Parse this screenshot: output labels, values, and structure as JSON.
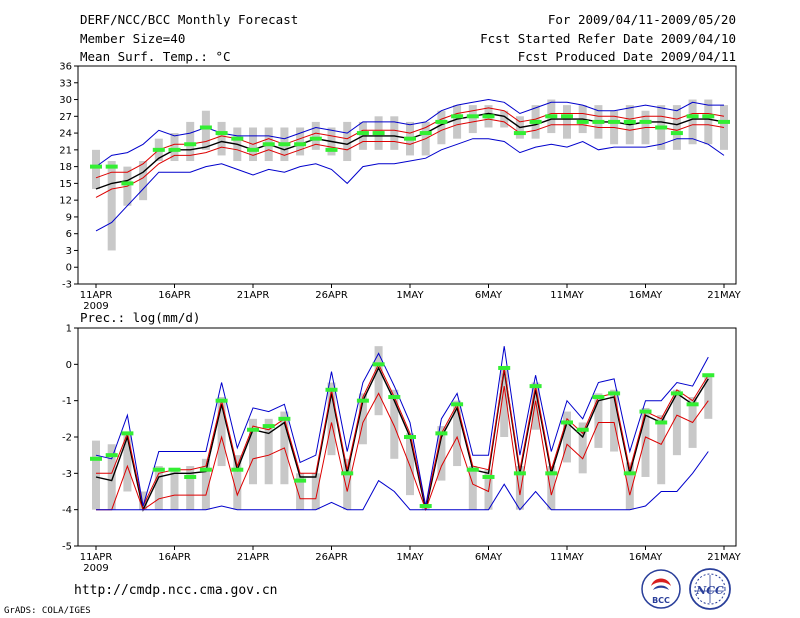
{
  "header": {
    "left_title": "DERF/NCC/BCC Monthly Forecast",
    "member_size": "Member Size=40",
    "variable1": "Mean Surf. Temp.: °C",
    "right_period": "For 2009/04/11-2009/05/20",
    "fcst_started": "Fcst Started Refer Date 2009/04/10",
    "fcst_produced": "Fcst Produced Date 2009/04/11"
  },
  "footer": {
    "url": "http://cmdp.ncc.cma.gov.cn",
    "grads": "GrADS: COLA/IGES"
  },
  "logos": {
    "bcc_text": "BCC",
    "ncc_text": "NCC"
  },
  "colors": {
    "mean": "#000000",
    "ensemble": "#dd0000",
    "envelope": "#0000cc",
    "observed": "#33ee33",
    "spread": "#c8c8c8"
  },
  "chart_data": [
    {
      "type": "line",
      "title": "Mean Surf. Temp.: °C",
      "x_tick_labels": [
        "11APR",
        "16APR",
        "21APR",
        "26APR",
        "1MAY",
        "6MAY",
        "11MAY",
        "16MAY",
        "21MAY"
      ],
      "year_label": "2009",
      "xlim": [
        0,
        40
      ],
      "ylim": [
        -3,
        36
      ],
      "y_ticks": [
        -3,
        0,
        3,
        6,
        9,
        12,
        15,
        18,
        21,
        24,
        27,
        30,
        33,
        36
      ],
      "series": [
        {
          "name": "ensemble mean",
          "values": [
            14,
            15,
            15.5,
            17,
            19.5,
            21,
            21,
            21.5,
            22.5,
            22,
            21,
            22,
            21,
            22,
            23,
            22.5,
            22,
            23.5,
            23.5,
            23.5,
            23,
            24,
            25.5,
            26.5,
            27,
            27.5,
            27,
            25,
            25.5,
            26.5,
            26.5,
            26.5,
            26,
            26,
            25.5,
            26,
            26,
            25.5,
            26.5,
            26.5,
            26
          ]
        },
        {
          "name": "upper member",
          "values": [
            16,
            17,
            17,
            18.5,
            21,
            22,
            22,
            22.5,
            23.5,
            23,
            22,
            23,
            22,
            23,
            24,
            23.5,
            23,
            24.5,
            24.5,
            24.5,
            24,
            25,
            26.5,
            27.5,
            28,
            28.5,
            28,
            26,
            26.5,
            27.5,
            27.5,
            27.5,
            27,
            27,
            26.5,
            27,
            27,
            26.5,
            27.5,
            27.5,
            27
          ]
        },
        {
          "name": "lower member",
          "values": [
            12.5,
            14,
            14.5,
            16,
            18.5,
            20,
            20,
            20.5,
            21.5,
            21,
            20,
            21,
            20,
            21,
            22,
            21.5,
            21,
            22.5,
            22.5,
            22.5,
            22,
            23,
            24.5,
            25.5,
            26,
            26.5,
            26,
            24,
            24.5,
            25.5,
            25.5,
            25.5,
            25,
            25,
            24.5,
            25,
            25,
            24.5,
            25.5,
            25.5,
            25
          ]
        },
        {
          "name": "max envelope",
          "values": [
            18,
            20,
            20.5,
            22,
            24.5,
            23.5,
            24,
            25,
            24,
            23.5,
            23.5,
            23.5,
            23,
            24,
            25,
            24.5,
            24,
            26,
            26,
            26,
            25.5,
            26,
            28,
            29,
            29.5,
            30,
            29.5,
            27.5,
            28.5,
            29.5,
            29.5,
            29,
            28,
            28,
            28.5,
            29,
            28.5,
            28,
            29.5,
            29,
            29
          ]
        },
        {
          "name": "min envelope",
          "values": [
            6.5,
            8,
            11,
            14,
            17,
            17,
            17,
            18,
            18.5,
            17.5,
            16.5,
            17.5,
            17,
            18,
            18.5,
            17.5,
            15,
            18,
            18.5,
            18.5,
            19,
            19.5,
            21,
            22,
            23,
            23,
            22.5,
            20.5,
            21.5,
            22,
            21.5,
            22.5,
            21,
            21.5,
            21.5,
            21.5,
            22,
            23,
            23,
            22,
            20
          ]
        },
        {
          "name": "observed",
          "values": [
            18,
            18,
            15,
            null,
            21,
            21,
            22,
            25,
            24,
            23,
            21,
            22,
            22,
            22,
            23,
            21,
            null,
            24,
            24,
            null,
            23,
            24,
            26,
            27,
            27,
            27,
            null,
            24,
            26,
            27,
            27,
            26,
            26,
            26,
            26,
            26,
            25,
            24,
            27,
            27,
            26
          ]
        }
      ],
      "spread_bars": [
        [
          14,
          21
        ],
        [
          3,
          19
        ],
        [
          11,
          18
        ],
        [
          12,
          19
        ],
        [
          19,
          23
        ],
        [
          19,
          24
        ],
        [
          19,
          26
        ],
        [
          21,
          28
        ],
        [
          20,
          26
        ],
        [
          19,
          25
        ],
        [
          19,
          25
        ],
        [
          19,
          25
        ],
        [
          19,
          25
        ],
        [
          20,
          25
        ],
        [
          21,
          26
        ],
        [
          20,
          25
        ],
        [
          19,
          26
        ],
        [
          21,
          26
        ],
        [
          21,
          27
        ],
        [
          21,
          27
        ],
        [
          20,
          26
        ],
        [
          20,
          26
        ],
        [
          22,
          28
        ],
        [
          23,
          29
        ],
        [
          24,
          29
        ],
        [
          25,
          29
        ],
        [
          25,
          28
        ],
        [
          23,
          27
        ],
        [
          23,
          29
        ],
        [
          24,
          30
        ],
        [
          23,
          29
        ],
        [
          24,
          29
        ],
        [
          23,
          29
        ],
        [
          22,
          28
        ],
        [
          22,
          29
        ],
        [
          22,
          28
        ],
        [
          21,
          29
        ],
        [
          21,
          29
        ],
        [
          22,
          30
        ],
        [
          22,
          30
        ],
        [
          21,
          29
        ]
      ]
    },
    {
      "type": "line",
      "title": "Prec.: log(mm/d)",
      "x_tick_labels": [
        "11APR",
        "16APR",
        "21APR",
        "26APR",
        "1MAY",
        "6MAY",
        "11MAY",
        "16MAY",
        "21MAY"
      ],
      "year_label": "2009",
      "xlim": [
        0,
        40
      ],
      "ylim": [
        -5,
        1
      ],
      "y_ticks": [
        -5,
        -4,
        -3,
        -2,
        -1,
        0,
        1
      ],
      "series": [
        {
          "name": "ensemble mean",
          "values": [
            -3.1,
            -3.2,
            -2,
            -4,
            -3.1,
            -3,
            -3,
            -2.95,
            -1.1,
            -2.9,
            -1.8,
            -1.9,
            -1.6,
            -3.1,
            -3.1,
            -0.8,
            -3,
            -1,
            -0.1,
            -1,
            -2,
            -4,
            -2,
            -1.2,
            -2.9,
            -3,
            -0.15,
            -3,
            -0.7,
            -3,
            -1.6,
            -2,
            -1,
            -0.9,
            -3,
            -1.4,
            -1.6,
            -0.8,
            -1.1,
            -0.4
          ]
        },
        {
          "name": "upper member",
          "values": [
            -3,
            -3,
            -1.9,
            -3.9,
            -3,
            -2.9,
            -2.9,
            -2.8,
            -1,
            -2.8,
            -1.7,
            -1.8,
            -1.5,
            -3,
            -3,
            -0.7,
            -2.9,
            -0.9,
            0,
            -0.9,
            -1.9,
            -3.9,
            -1.9,
            -1.1,
            -2.8,
            -2.9,
            -0.1,
            -2.9,
            -0.6,
            -2.9,
            -1.5,
            -1.9,
            -0.9,
            -0.8,
            -2.9,
            -1.3,
            -1.5,
            -0.7,
            -1,
            -0.3
          ]
        },
        {
          "name": "lower member",
          "values": [
            -4,
            -4,
            -2.8,
            -4,
            -3.7,
            -3.6,
            -3.6,
            -3.6,
            -2,
            -3.6,
            -2.6,
            -2.5,
            -2.3,
            -3.7,
            -3.7,
            -1.6,
            -3.5,
            -1.6,
            -0.8,
            -1.7,
            -2.8,
            -4,
            -2.8,
            -2,
            -3.3,
            -3.5,
            -0.6,
            -3.6,
            -1,
            -3.6,
            -2.2,
            -2.6,
            -1.6,
            -1.6,
            -3.6,
            -2,
            -2.2,
            -1.4,
            -1.6,
            -1
          ]
        },
        {
          "name": "max envelope",
          "values": [
            -2.5,
            -2.6,
            -1.4,
            -3.9,
            -2.4,
            -2.4,
            -2.4,
            -2.4,
            -0.5,
            -2.3,
            -1.2,
            -1.3,
            -1.1,
            -2.7,
            -2.5,
            -0.2,
            -2.4,
            -0.5,
            0.3,
            -0.6,
            -1.6,
            -3.9,
            -1.5,
            -0.8,
            -2.5,
            -2.5,
            0.5,
            -2.5,
            -0.3,
            -2.4,
            -1,
            -1.5,
            -0.5,
            -0.4,
            -2.4,
            -1,
            -1,
            -0.5,
            -0.6,
            0.2
          ]
        },
        {
          "name": "min envelope",
          "values": [
            -4,
            -4,
            -4,
            -4,
            -4,
            -4,
            -4,
            -4,
            -3.9,
            -4,
            -4,
            -4,
            -4,
            -4,
            -4,
            -3.8,
            -4,
            -4,
            -3.2,
            -3.5,
            -4,
            -4,
            -4,
            -4,
            -4,
            -4,
            -3.3,
            -4,
            -3.5,
            -4,
            -4,
            -4,
            -4,
            -4,
            -4,
            -3.9,
            -3.5,
            -3.5,
            -3,
            -2.4
          ]
        },
        {
          "name": "observed",
          "values": [
            -2.6,
            -2.5,
            -1.9,
            null,
            -2.9,
            -2.9,
            -3.1,
            -2.9,
            -1,
            -2.9,
            -1.8,
            -1.7,
            -1.5,
            -3.2,
            null,
            -0.7,
            -3,
            -1,
            0,
            -0.9,
            -2,
            -3.9,
            -1.9,
            -1.1,
            -2.9,
            -3.1,
            -0.1,
            -3,
            -0.6,
            -3,
            -1.6,
            -1.8,
            -0.9,
            -0.8,
            -3,
            -1.3,
            -1.6,
            -0.8,
            -1.1,
            -0.3
          ]
        }
      ],
      "spread_bars": [
        [
          -4,
          -2.1
        ],
        [
          -4,
          -2.2
        ],
        [
          -3.5,
          -1.9
        ],
        [
          -4,
          -3.5
        ],
        [
          -4,
          -2.8
        ],
        [
          -4,
          -2.9
        ],
        [
          -4,
          -2.8
        ],
        [
          -4,
          -2.6
        ],
        [
          -2.8,
          -0.9
        ],
        [
          -4,
          -2.5
        ],
        [
          -3.3,
          -1.5
        ],
        [
          -3.3,
          -1.5
        ],
        [
          -3.3,
          -1.3
        ],
        [
          -4,
          -3
        ],
        [
          -4,
          -3
        ],
        [
          -2.5,
          -0.5
        ],
        [
          -4,
          -2.6
        ],
        [
          -2.2,
          -0.8
        ],
        [
          -1.4,
          0.5
        ],
        [
          -2.6,
          -0.7
        ],
        [
          -3.6,
          -1.9
        ],
        [
          -4,
          -3.9
        ],
        [
          -3.2,
          -1.7
        ],
        [
          -2.8,
          -1
        ],
        [
          -4,
          -2.8
        ],
        [
          -4,
          -2.9
        ],
        [
          -2,
          -0.1
        ],
        [
          -4,
          -2.8
        ],
        [
          -1.8,
          -0.5
        ],
        [
          -4,
          -2.8
        ],
        [
          -2.7,
          -1.3
        ],
        [
          -3,
          -1.6
        ],
        [
          -2.3,
          -0.8
        ],
        [
          -2.4,
          -0.7
        ],
        [
          -4,
          -2.7
        ],
        [
          -3.1,
          -1.2
        ],
        [
          -3.3,
          -1.4
        ],
        [
          -2.5,
          -0.7
        ],
        [
          -2.3,
          -0.9
        ],
        [
          -1.5,
          -0.3
        ]
      ]
    }
  ]
}
